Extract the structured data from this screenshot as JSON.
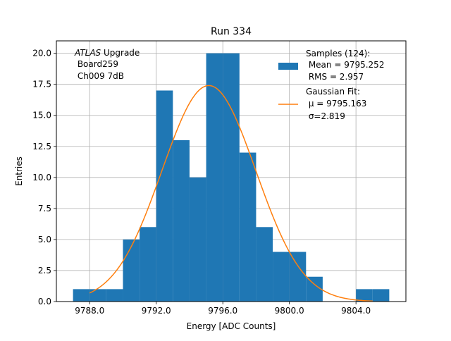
{
  "chart_data": {
    "type": "bar",
    "title": "Run 334",
    "xlabel": "Energy [ADC Counts]",
    "ylabel": "Entries",
    "xlim": [
      9786.0,
      9807.0
    ],
    "ylim": [
      0,
      21.0
    ],
    "grid": true,
    "x_ticks": [
      9788.0,
      9792.0,
      9796.0,
      9800.0,
      9804.0
    ],
    "x_tick_labels": [
      "9788.0",
      "9792.0",
      "9796.0",
      "9800.0",
      "9804.0"
    ],
    "y_ticks": [
      0.0,
      2.5,
      5.0,
      7.5,
      10.0,
      12.5,
      15.0,
      17.5,
      20.0
    ],
    "y_tick_labels": [
      "0.0",
      "2.5",
      "5.0",
      "7.5",
      "10.0",
      "12.5",
      "15.0",
      "17.5",
      "20.0"
    ],
    "histogram": {
      "name": "Samples (124):",
      "color": "#1f77b4",
      "bin_edges": [
        9787.0,
        9788.0,
        9789.0,
        9790.0,
        9791.0,
        9792.0,
        9793.0,
        9794.0,
        9795.0,
        9796.0,
        9797.0,
        9798.0,
        9799.0,
        9800.0,
        9801.0,
        9802.0,
        9803.0,
        9804.0,
        9805.0,
        9806.0
      ],
      "counts": [
        1,
        1,
        1,
        5,
        6,
        17,
        13,
        10,
        20,
        20,
        12,
        6,
        4,
        4,
        2,
        0,
        0,
        1,
        1
      ]
    },
    "fit": {
      "name": "Gaussian Fit:",
      "color": "#ff7f0e",
      "mu": 9795.163,
      "sigma": 2.819,
      "amplitude": 17.4,
      "x_range": [
        9788.0,
        9805.0
      ]
    },
    "annotation": {
      "line1_italic": "ATLAS",
      "line1_rest": " Upgrade",
      "line2": " Board259",
      "line3": " Ch009 7dB"
    },
    "legend": {
      "position": "upper right",
      "hist_lines": [
        "Samples (124):",
        " Mean = 9795.252",
        " RMS = 2.957"
      ],
      "fit_lines": [
        "Gaussian Fit:",
        " μ = 9795.163",
        " σ=2.819"
      ]
    }
  }
}
